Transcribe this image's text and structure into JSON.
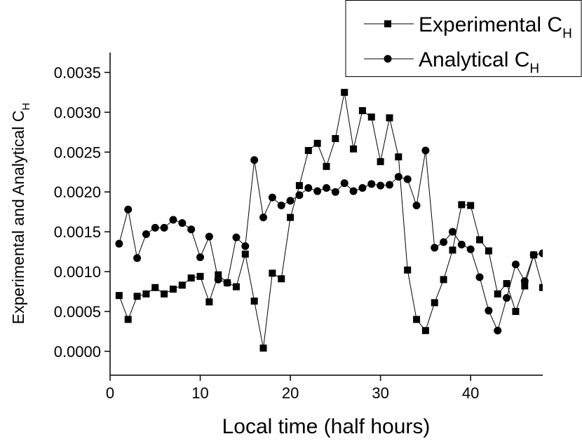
{
  "chart_data": {
    "type": "line",
    "x_label": "Local time (half hours)",
    "y_label": "Experimental and Analytical C",
    "y_label_subscript": "H",
    "x": [
      1,
      2,
      3,
      4,
      5,
      6,
      7,
      8,
      9,
      10,
      11,
      12,
      13,
      14,
      15,
      16,
      17,
      18,
      19,
      20,
      21,
      22,
      23,
      24,
      25,
      26,
      27,
      28,
      29,
      30,
      31,
      32,
      33,
      34,
      35,
      36,
      37,
      38,
      39,
      40,
      41,
      42,
      43,
      44,
      45,
      46,
      47,
      48
    ],
    "series": [
      {
        "name": "Experimental C",
        "name_subscript": "H",
        "marker": "square",
        "color": "#000000",
        "values": [
          0.0007,
          0.0004,
          0.00069,
          0.00072,
          0.0008,
          0.00072,
          0.00078,
          0.00083,
          0.00092,
          0.00094,
          0.00062,
          0.00096,
          0.00086,
          0.00081,
          0.00122,
          0.00063,
          4e-05,
          0.00098,
          0.00091,
          0.00168,
          0.00208,
          0.00252,
          0.00261,
          0.00232,
          0.00267,
          0.00325,
          0.00254,
          0.00302,
          0.00294,
          0.00238,
          0.00293,
          0.00244,
          0.00102,
          0.0004,
          0.00026,
          0.00061,
          0.0009,
          0.00127,
          0.00184,
          0.00183,
          0.0014,
          0.00126,
          0.00072,
          0.00085,
          0.0005,
          0.00082,
          0.00121,
          0.0008
        ]
      },
      {
        "name": "Analytical C",
        "name_subscript": "H",
        "marker": "circle",
        "color": "#000000",
        "values": [
          0.00135,
          0.00178,
          0.00117,
          0.00147,
          0.00155,
          0.00155,
          0.00165,
          0.00161,
          0.00153,
          0.00118,
          0.00144,
          0.0009,
          0.00086,
          0.00143,
          0.00132,
          0.0024,
          0.00168,
          0.00193,
          0.00183,
          0.00189,
          0.00196,
          0.00205,
          0.00201,
          0.00205,
          0.002,
          0.00211,
          0.00201,
          0.00205,
          0.0021,
          0.00208,
          0.00209,
          0.00219,
          0.00216,
          0.00183,
          0.00252,
          0.0013,
          0.00137,
          0.0015,
          0.00134,
          0.00128,
          0.00093,
          0.00051,
          0.00026,
          0.00067,
          0.00109,
          0.00088,
          0.00121,
          0.00123
        ]
      }
    ],
    "xlim": [
      0,
      48
    ],
    "xticks": [
      0,
      10,
      20,
      30,
      40
    ],
    "ylim": [
      -0.0003,
      0.00375
    ],
    "yticks": [
      {
        "value": 0,
        "label": "0.0000"
      },
      {
        "value": 0.0005,
        "label": "0.0005"
      },
      {
        "value": 0.001,
        "label": "0.0010"
      },
      {
        "value": 0.0015,
        "label": "0.0015"
      },
      {
        "value": 0.002,
        "label": "0.0020"
      },
      {
        "value": 0.0025,
        "label": "0.0025"
      },
      {
        "value": 0.003,
        "label": "0.0030"
      },
      {
        "value": 0.0035,
        "label": "0.0035"
      }
    ],
    "grid": false,
    "legend": "top-right"
  }
}
